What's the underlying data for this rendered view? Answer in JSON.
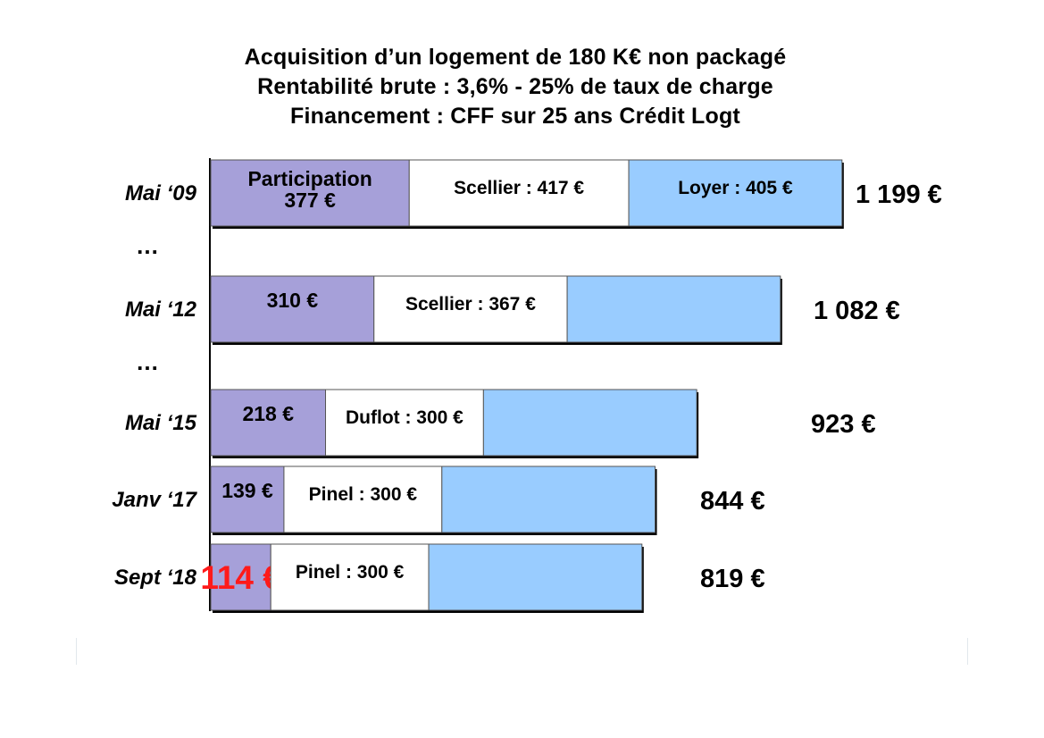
{
  "title_lines": [
    "Acquisition d’un logement de 180 K€ non packagé",
    "Rentabilité brute : 3,6% - 25% de taux de charge",
    "Financement : CFF sur 25 ans Crédit Logt"
  ],
  "chart_data": {
    "type": "bar",
    "orientation": "horizontal",
    "stacked": true,
    "title": "Acquisition d’un logement de 180 K€ non packagé / Rentabilité brute : 3,6% - 25% de taux de charge / Financement : CFF sur 25 ans Crédit Logt",
    "categories": [
      "Mai ‘09",
      "Mai ‘12",
      "Mai ‘15",
      "Janv ‘17",
      "Sept ‘18"
    ],
    "ellipsis_marks": [
      "…",
      "…"
    ],
    "series": [
      {
        "color": "#a6a0d9",
        "values": [
          377,
          310,
          218,
          139,
          114
        ],
        "labels": [
          "Participation\n377 €",
          "310 €",
          "218 €",
          "139 €",
          "114 €"
        ],
        "highlight": {
          "index": 4,
          "color": "#ff1a1a"
        }
      },
      {
        "color": "#ffffff",
        "values": [
          417,
          367,
          300,
          300,
          300
        ],
        "labels": [
          "Scellier : 417 €",
          "Scellier : 367 €",
          "Duflot : 300 €",
          "Pinel : 300 €",
          "Pinel : 300 €"
        ]
      },
      {
        "color": "#99ccff",
        "values": [
          405,
          405,
          405,
          405,
          405
        ],
        "labels": [
          "Loyer : 405 €",
          "",
          "",
          "",
          ""
        ]
      }
    ],
    "totals": [
      "1 199 €",
      "1 082 €",
      "923 €",
      "844 €",
      "819 €"
    ],
    "grid": false,
    "legend": "none"
  }
}
